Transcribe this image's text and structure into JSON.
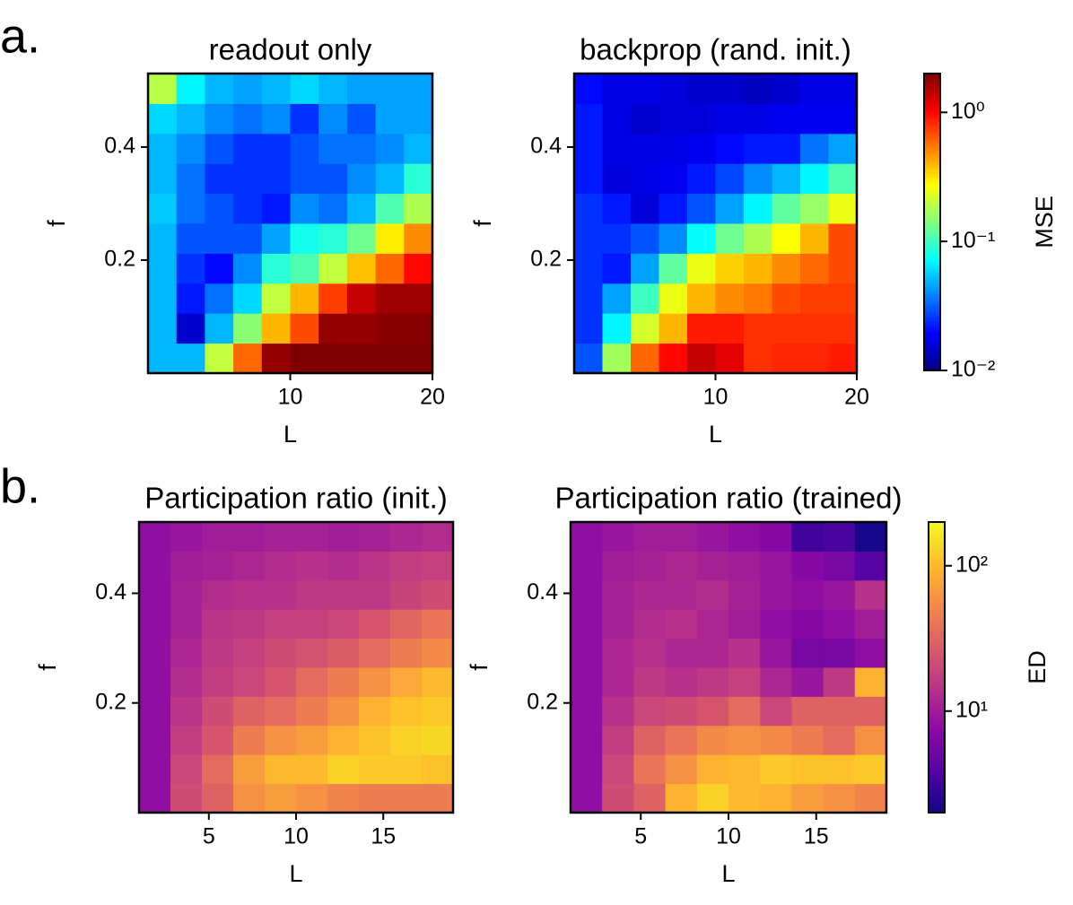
{
  "panel_labels": [
    "a.",
    "b."
  ],
  "chart_data": [
    {
      "type": "heatmap",
      "title": "readout only",
      "xlabel": "L",
      "ylabel": "f",
      "cmap": "jet",
      "log_color": true,
      "xlim": [
        0,
        20
      ],
      "ylim": [
        0,
        0.53
      ],
      "xticks": [
        10,
        20
      ],
      "yticks": [
        0.2,
        0.4
      ],
      "clim": [
        0.01,
        2
      ],
      "values": [
        [
          0.05,
          0.05,
          0.2,
          0.6,
          1.8,
          2.0,
          2.0,
          2.0,
          2.0,
          2.0
        ],
        [
          0.05,
          0.015,
          0.05,
          0.15,
          0.4,
          0.7,
          1.8,
          1.8,
          1.9,
          1.9
        ],
        [
          0.05,
          0.022,
          0.035,
          0.06,
          0.2,
          0.4,
          0.75,
          1.4,
          1.7,
          1.7
        ],
        [
          0.05,
          0.025,
          0.02,
          0.04,
          0.09,
          0.11,
          0.2,
          0.38,
          0.6,
          1.0
        ],
        [
          0.05,
          0.03,
          0.03,
          0.03,
          0.045,
          0.08,
          0.09,
          0.13,
          0.3,
          0.5
        ],
        [
          0.055,
          0.035,
          0.03,
          0.025,
          0.022,
          0.04,
          0.035,
          0.05,
          0.11,
          0.18
        ],
        [
          0.05,
          0.035,
          0.025,
          0.025,
          0.025,
          0.03,
          0.03,
          0.04,
          0.05,
          0.09
        ],
        [
          0.05,
          0.04,
          0.03,
          0.025,
          0.025,
          0.03,
          0.035,
          0.035,
          0.04,
          0.05
        ],
        [
          0.06,
          0.05,
          0.04,
          0.035,
          0.04,
          0.025,
          0.04,
          0.03,
          0.045,
          0.045
        ],
        [
          0.19,
          0.07,
          0.05,
          0.045,
          0.05,
          0.06,
          0.05,
          0.045,
          0.045,
          0.045
        ]
      ]
    },
    {
      "type": "heatmap",
      "title": "backprop (rand. init.)",
      "xlabel": "L",
      "ylabel": "f",
      "cmap": "jet",
      "log_color": true,
      "xlim": [
        0,
        20
      ],
      "ylim": [
        0,
        0.53
      ],
      "xticks": [
        10,
        20
      ],
      "yticks": [
        0.2,
        0.4
      ],
      "clim": [
        0.01,
        2
      ],
      "colorbar": {
        "label": "MSE",
        "ticks": [
          {
            "value": 0.01,
            "label": "10⁻²"
          },
          {
            "value": 0.1,
            "label": "10⁻¹"
          },
          {
            "value": 1,
            "label": "10⁰"
          }
        ]
      },
      "values": [
        [
          0.03,
          0.17,
          0.6,
          1.0,
          1.4,
          1.2,
          0.8,
          0.85,
          0.85,
          0.9
        ],
        [
          0.025,
          0.07,
          0.22,
          0.4,
          0.9,
          0.9,
          0.8,
          0.8,
          0.8,
          0.8
        ],
        [
          0.025,
          0.045,
          0.1,
          0.25,
          0.4,
          0.5,
          0.55,
          0.7,
          0.75,
          0.75
        ],
        [
          0.025,
          0.022,
          0.045,
          0.12,
          0.25,
          0.35,
          0.4,
          0.5,
          0.6,
          0.7
        ],
        [
          0.025,
          0.025,
          0.03,
          0.04,
          0.075,
          0.13,
          0.18,
          0.27,
          0.4,
          0.7
        ],
        [
          0.025,
          0.022,
          0.016,
          0.022,
          0.03,
          0.045,
          0.07,
          0.12,
          0.16,
          0.25
        ],
        [
          0.022,
          0.016,
          0.017,
          0.018,
          0.022,
          0.028,
          0.04,
          0.05,
          0.07,
          0.11
        ],
        [
          0.022,
          0.017,
          0.017,
          0.017,
          0.018,
          0.02,
          0.022,
          0.022,
          0.035,
          0.045
        ],
        [
          0.022,
          0.017,
          0.015,
          0.016,
          0.016,
          0.017,
          0.017,
          0.018,
          0.018,
          0.018
        ],
        [
          0.02,
          0.017,
          0.017,
          0.016,
          0.015,
          0.015,
          0.014,
          0.015,
          0.017,
          0.017
        ]
      ]
    },
    {
      "type": "heatmap",
      "title": "Participation ratio (init.)",
      "xlabel": "L",
      "ylabel": "f",
      "cmap": "plasma",
      "log_color": true,
      "xlim": [
        1,
        19
      ],
      "ylim": [
        0,
        0.53
      ],
      "xticks": [
        5,
        10,
        15
      ],
      "yticks": [
        0.2,
        0.4
      ],
      "clim": [
        2,
        200
      ],
      "values": [
        [
          8,
          22,
          30,
          60,
          70,
          60,
          50,
          45,
          45,
          45
        ],
        [
          8,
          20,
          35,
          70,
          100,
          100,
          130,
          120,
          120,
          110
        ],
        [
          8,
          17,
          25,
          45,
          60,
          70,
          90,
          110,
          130,
          140
        ],
        [
          8,
          15,
          22,
          30,
          35,
          45,
          60,
          90,
          110,
          120
        ],
        [
          8,
          13,
          17,
          20,
          25,
          35,
          45,
          60,
          80,
          100
        ],
        [
          8,
          12,
          16,
          18,
          22,
          24,
          28,
          35,
          45,
          55
        ],
        [
          8,
          11,
          15,
          16,
          18,
          18,
          20,
          25,
          32,
          40
        ],
        [
          8,
          11,
          13,
          14,
          14,
          16,
          16,
          16,
          19,
          22
        ],
        [
          8,
          10,
          11,
          12,
          13,
          14,
          13,
          15,
          17,
          18
        ],
        [
          8,
          9,
          10,
          10,
          11,
          11,
          10,
          11,
          12,
          13
        ]
      ]
    },
    {
      "type": "heatmap",
      "title": "Participation ratio (trained)",
      "xlabel": "L",
      "ylabel": "f",
      "cmap": "plasma",
      "log_color": true,
      "xlim": [
        1,
        19
      ],
      "ylim": [
        0,
        0.53
      ],
      "xticks": [
        5,
        10,
        15
      ],
      "yticks": [
        0.2,
        0.4
      ],
      "clim": [
        2,
        200
      ],
      "colorbar": {
        "label": "ED",
        "ticks": [
          {
            "value": 10,
            "label": "10¹"
          },
          {
            "value": 100,
            "label": "10²"
          }
        ]
      },
      "values": [
        [
          8,
          22,
          30,
          90,
          130,
          100,
          90,
          70,
          60,
          50
        ],
        [
          8,
          20,
          40,
          60,
          90,
          100,
          120,
          110,
          110,
          120
        ],
        [
          8,
          17,
          30,
          40,
          55,
          60,
          55,
          45,
          35,
          60
        ],
        [
          8,
          14,
          20,
          22,
          25,
          35,
          20,
          30,
          30,
          30
        ],
        [
          8,
          12,
          16,
          14,
          16,
          18,
          12,
          9,
          16,
          90
        ],
        [
          8,
          12,
          14,
          12,
          12,
          14,
          9,
          6,
          6,
          8
        ],
        [
          8,
          11,
          13,
          14,
          12,
          10,
          8,
          7,
          8,
          10
        ],
        [
          8,
          11,
          12,
          12,
          13,
          11,
          9,
          8,
          9,
          14
        ],
        [
          8,
          10,
          11,
          12,
          11,
          10,
          9,
          7,
          6,
          4
        ],
        [
          8,
          9,
          10,
          10,
          9,
          8,
          7,
          3.2,
          3.5,
          2.2
        ]
      ]
    }
  ]
}
